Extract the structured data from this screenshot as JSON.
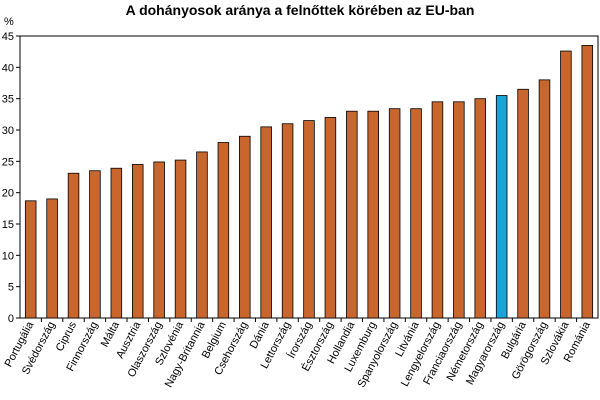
{
  "chart_data": {
    "type": "bar",
    "title": "A dohányosok aránya a felnőttek körében az EU-ban",
    "ylabel": "%",
    "xlabel": "",
    "ylim": [
      0,
      45
    ],
    "yticks": [
      0,
      5,
      10,
      15,
      20,
      25,
      30,
      35,
      40,
      45
    ],
    "grid": false,
    "legend": "none",
    "bar_color": "#c8662e",
    "highlight_color": "#1aa3d9",
    "highlight_category": "Magyarország",
    "categories": [
      "Portugália",
      "Svédország",
      "Ciprus",
      "Finnország",
      "Málta",
      "Ausztria",
      "Olaszország",
      "Szlovénia",
      "Nagy-Britannia",
      "Belgium",
      "Csehország",
      "Dánia",
      "Lettország",
      "Írország",
      "Észtország",
      "Hollandia",
      "Luxemburg",
      "Spanyolország",
      "Litvánia",
      "Lengyelország",
      "Franciaország",
      "Németország",
      "Magyarország",
      "Bulgária",
      "Görögország",
      "Szlovákia",
      "Románia"
    ],
    "values": [
      18.7,
      19.0,
      23.1,
      23.5,
      23.9,
      24.5,
      24.9,
      25.2,
      26.5,
      28.0,
      29.0,
      30.5,
      31.0,
      31.5,
      32.0,
      33.0,
      33.0,
      33.4,
      33.4,
      34.5,
      34.5,
      35.0,
      35.5,
      36.5,
      38.0,
      42.6,
      43.5
    ]
  }
}
